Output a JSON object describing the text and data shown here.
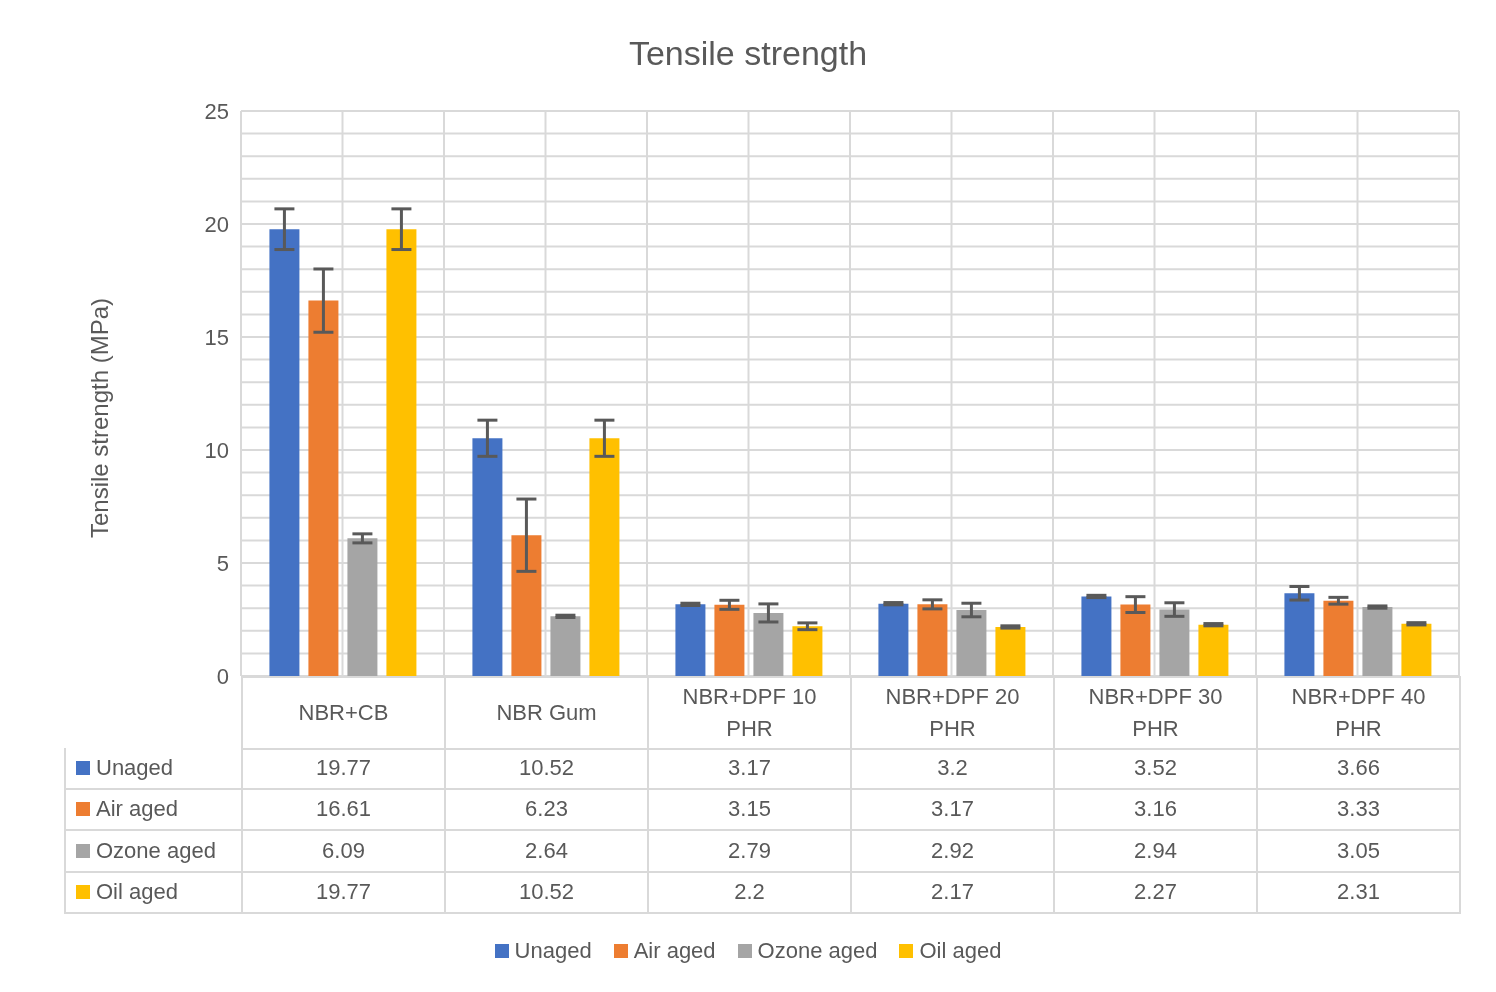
{
  "chart_data": {
    "type": "bar",
    "title": "Tensile strength",
    "ylabel": "Tensile strength (MPa)",
    "categories": [
      "NBR+CB",
      "NBR Gum",
      "NBR+DPF 10 PHR",
      "NBR+DPF 20 PHR",
      "NBR+DPF 30 PHR",
      "NBR+DPF 40 PHR"
    ],
    "series": [
      {
        "name": "Unaged",
        "color": "#4472c4",
        "values": [
          19.77,
          10.52,
          3.17,
          3.2,
          3.52,
          3.66
        ],
        "errors": [
          0.9,
          0.8,
          0.05,
          0.05,
          0.05,
          0.3
        ]
      },
      {
        "name": "Air aged",
        "color": "#ed7d31",
        "values": [
          16.61,
          6.23,
          3.15,
          3.17,
          3.16,
          3.33
        ],
        "errors": [
          1.4,
          1.6,
          0.2,
          0.2,
          0.35,
          0.15
        ]
      },
      {
        "name": "Ozone aged",
        "color": "#a5a5a5",
        "values": [
          6.09,
          2.64,
          2.79,
          2.92,
          2.94,
          3.05
        ],
        "errors": [
          0.2,
          0.05,
          0.4,
          0.3,
          0.3,
          0.05
        ]
      },
      {
        "name": "Oil aged",
        "color": "#ffc000",
        "values": [
          19.77,
          10.52,
          2.2,
          2.17,
          2.27,
          2.31
        ],
        "errors": [
          0.9,
          0.8,
          0.15,
          0.05,
          0.05,
          0.05
        ]
      }
    ],
    "ylim": [
      0,
      25
    ],
    "yticks": [
      0,
      {
        "value": 1,
        "label": null
      },
      {
        "value": 2,
        "label": null
      },
      {
        "value": 3,
        "label": null
      },
      {
        "value": 4,
        "label": null
      },
      5,
      {
        "value": 6,
        "label": null
      },
      {
        "value": 7,
        "label": null
      },
      {
        "value": 8,
        "label": null
      },
      {
        "value": 9,
        "label": null
      },
      10,
      {
        "value": 11,
        "label": null
      },
      {
        "value": 12,
        "label": null
      },
      {
        "value": 13,
        "label": null
      },
      {
        "value": 14,
        "label": null
      },
      15,
      {
        "value": 16,
        "label": null
      },
      {
        "value": 17,
        "label": null
      },
      {
        "value": 18,
        "label": null
      },
      {
        "value": 19,
        "label": null
      },
      20,
      {
        "value": 21,
        "label": null
      },
      {
        "value": 22,
        "label": null
      },
      {
        "value": 23,
        "label": null
      },
      {
        "value": 24,
        "label": null
      },
      25
    ],
    "grid": true,
    "data_labels": true,
    "legend": "bottom"
  }
}
